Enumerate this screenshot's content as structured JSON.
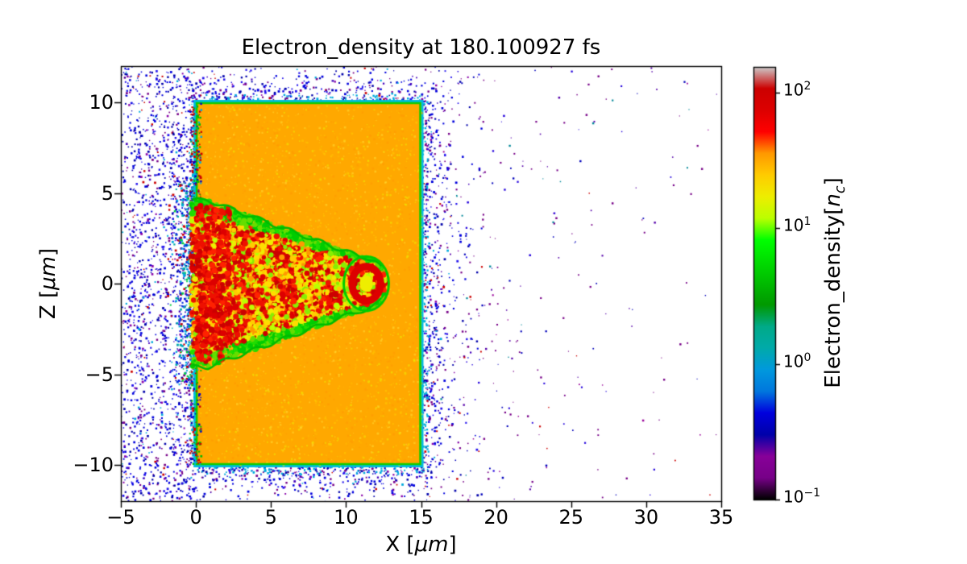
{
  "chart_data": {
    "type": "heatmap",
    "title": "Electron_density at 180.100927 fs",
    "time_fs": 180.100927,
    "xlabel": {
      "prefix": "X [",
      "math": "μm",
      "suffix": "]"
    },
    "ylabel": {
      "prefix": "Z [",
      "math": "μm",
      "suffix": "]"
    },
    "xlim": [
      -5,
      35
    ],
    "zlim": [
      -12,
      12
    ],
    "x_ticks": {
      "values": [
        -5,
        0,
        5,
        10,
        15,
        20,
        25,
        30,
        35
      ],
      "labels": [
        "−5",
        "0",
        "5",
        "10",
        "15",
        "20",
        "25",
        "30",
        "35"
      ]
    },
    "z_ticks": {
      "values": [
        -10,
        -5,
        0,
        5,
        10
      ],
      "labels": [
        "−10",
        "−5",
        "0",
        "5",
        "10"
      ]
    },
    "grid": false,
    "colorbar": {
      "label": {
        "prefix": "Electron_density[",
        "var": "n",
        "sub": "c",
        "suffix": "]"
      },
      "scale": "log",
      "vmin": 0.1,
      "vmax": 155,
      "ticks": [
        {
          "value": 100,
          "base": "10",
          "exp": "2"
        },
        {
          "value": 10,
          "base": "10",
          "exp": "1"
        },
        {
          "value": 1,
          "base": "10",
          "exp": "0"
        },
        {
          "value": 0.1,
          "base": "10",
          "exp": "−1"
        }
      ],
      "colormap": "nipy_spectral",
      "stops": [
        [
          0.0,
          "#000000"
        ],
        [
          0.05,
          "#770088"
        ],
        [
          0.1,
          "#880099"
        ],
        [
          0.15,
          "#0000aa"
        ],
        [
          0.2,
          "#0000dd"
        ],
        [
          0.25,
          "#0077dd"
        ],
        [
          0.3,
          "#0099dd"
        ],
        [
          0.35,
          "#00aaaa"
        ],
        [
          0.4,
          "#00aa88"
        ],
        [
          0.45,
          "#009900"
        ],
        [
          0.5,
          "#00bb00"
        ],
        [
          0.55,
          "#00dd00"
        ],
        [
          0.6,
          "#00ff00"
        ],
        [
          0.65,
          "#bbff00"
        ],
        [
          0.7,
          "#eeee00"
        ],
        [
          0.75,
          "#ffcc00"
        ],
        [
          0.8,
          "#ff9900"
        ],
        [
          0.85,
          "#ff0000"
        ],
        [
          0.9,
          "#dd0000"
        ],
        [
          0.95,
          "#cc0000"
        ],
        [
          1.0,
          "#cccccc"
        ]
      ]
    },
    "features": {
      "target_slab": {
        "x": [
          0,
          15
        ],
        "z": [
          -10,
          10
        ],
        "bulk_density_nc": 30,
        "fill": "#ffa800",
        "speckle": [
          "#ffcc00",
          "#ff9900",
          "#ffb700",
          "#eeee00",
          "#ffdd33"
        ],
        "edge_inner": "#11cc00",
        "edge_outer": "#00bbdd"
      },
      "channel": {
        "description": "laser-drilled turbulent channel on target front side, centered at z=0",
        "x_mouth": 0,
        "x_tip": 12.6,
        "half_width_mouth": 4.6,
        "half_width_neck": 1.5,
        "tip_center": [
          11.35,
          0
        ],
        "tip_radius": 1.5,
        "peak_density_nc": 100,
        "reds": [
          "#dd0000",
          "#ee1100",
          "#cc0000",
          "#ff2200"
        ],
        "yellows": [
          "#eeee00",
          "#ffdd00",
          "#ffcc00"
        ],
        "greens": [
          "#00cc00",
          "#22dd00",
          "#66dd00"
        ],
        "others": [
          "#ff9900",
          "#bbff00",
          "#88ee00"
        ],
        "boundary": "#00bb00"
      },
      "electron_halo": {
        "description": "scattered low-density blow-off electrons surrounding target",
        "density_nc": 0.3,
        "extent_x": [
          -5,
          35
        ],
        "extent_z": [
          -12,
          12
        ],
        "colors": [
          "#0000dd",
          "#0000aa",
          "#2211ee",
          "#770088",
          "#8800aa",
          "#cc0000",
          "#00aadd",
          "#4400bb"
        ]
      },
      "far_field": {
        "description": "sparse electrons drifting to the right of the target",
        "colors": [
          "#770088",
          "#0000bb",
          "#5500aa",
          "#2200dd",
          "#990099",
          "#cc0000",
          "#008899"
        ]
      }
    }
  }
}
